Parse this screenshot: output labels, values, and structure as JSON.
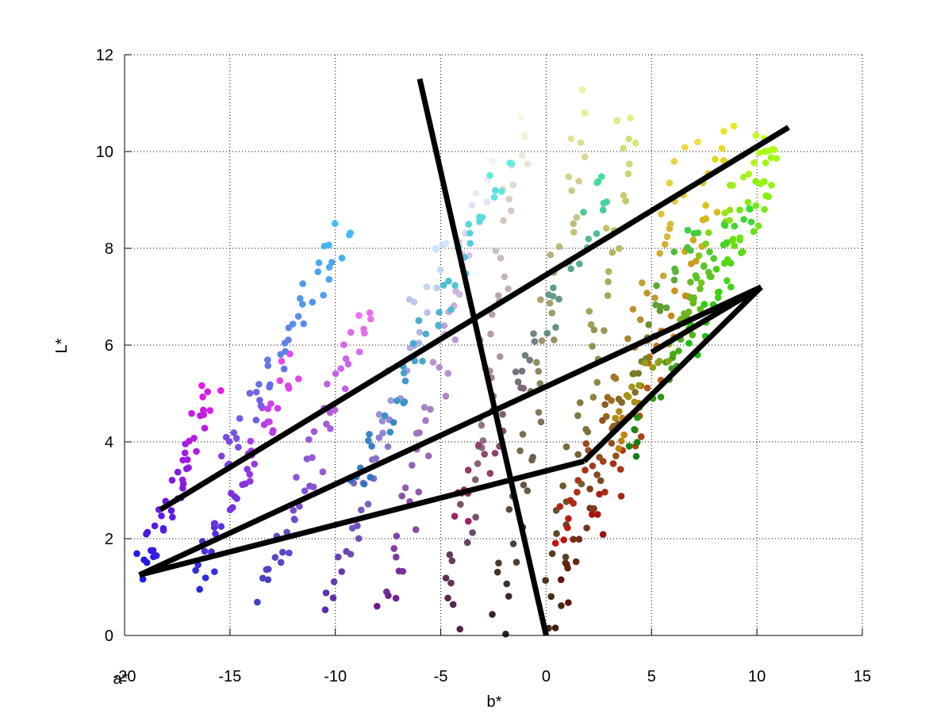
{
  "chart_data": {
    "type": "scatter",
    "xlabel": "b*",
    "ylabel": "L*",
    "corner_label": "a*",
    "xlim": [
      -20,
      15
    ],
    "ylim": [
      0,
      12
    ],
    "xticks": [
      -20,
      -15,
      -10,
      -5,
      0,
      5,
      10,
      15
    ],
    "yticks": [
      0,
      2,
      4,
      6,
      8,
      10,
      12
    ],
    "xtick_labels": [
      "-20",
      "-15",
      "-10",
      "-5",
      "0",
      "5",
      "10",
      "15"
    ],
    "ytick_labels": [
      "0",
      "2",
      "4",
      "6",
      "8",
      "10",
      "12"
    ],
    "grid": true,
    "grid_style": "dotted",
    "line_color": "#000000",
    "lines": [
      {
        "x": [
          -6.0,
          0.0
        ],
        "y": [
          11.5,
          0.0
        ]
      },
      {
        "x": [
          -18.3,
          11.5
        ],
        "y": [
          2.6,
          10.5
        ]
      },
      {
        "x": [
          -19.3,
          10.2
        ],
        "y": [
          1.25,
          7.2
        ]
      },
      {
        "x": [
          -19.3,
          1.8
        ],
        "y": [
          1.25,
          3.6
        ]
      },
      {
        "x": [
          1.8,
          10.2
        ],
        "y": [
          3.6,
          7.2
        ]
      },
      {
        "x": [
          5.0,
          10.2
        ],
        "y": [
          5.85,
          7.2
        ]
      }
    ],
    "point_clusters": [
      {
        "x": [
          -19.3,
          -15.8
        ],
        "y": [
          1.25,
          5.1
        ],
        "color_start": "#1a1ae6",
        "color_end": "#e61ae6"
      },
      {
        "x": [
          -16.6,
          -12.0
        ],
        "y": [
          1.0,
          5.6
        ],
        "color_start": "#2a2ad8",
        "color_end": "#ee44ee"
      },
      {
        "x": [
          -13.4,
          -8.5
        ],
        "y": [
          0.8,
          6.8
        ],
        "color_start": "#4040c0",
        "color_end": "#f070f0"
      },
      {
        "x": [
          -10.2,
          -5.0
        ],
        "y": [
          0.6,
          8.3
        ],
        "color_start": "#5a2aa8",
        "color_end": "#d0e8ff"
      },
      {
        "x": [
          -7.5,
          -3.0
        ],
        "y": [
          0.45,
          9.6
        ],
        "color_start": "#6a1a90",
        "color_end": "#f0f0ff"
      },
      {
        "x": [
          -4.6,
          -1.0
        ],
        "y": [
          0.3,
          10.8
        ],
        "color_start": "#50204a",
        "color_end": "#f8f8e0"
      },
      {
        "x": [
          -2.3,
          1.8
        ],
        "y": [
          0.15,
          11.1
        ],
        "color_start": "#302020",
        "color_end": "#f0f0a0"
      },
      {
        "x": [
          0.0,
          4.0
        ],
        "y": [
          0.05,
          10.9
        ],
        "color_start": "#402010",
        "color_end": "#e0f080"
      },
      {
        "x": [
          1.0,
          6.8
        ],
        "y": [
          0.8,
          10.2
        ],
        "color_start": "#601010",
        "color_end": "#f0e040"
      },
      {
        "x": [
          2.5,
          9.0
        ],
        "y": [
          2.2,
          10.6
        ],
        "color_start": "#a01010",
        "color_end": "#e8e820"
      },
      {
        "x": [
          4.0,
          10.2
        ],
        "y": [
          3.8,
          10.3
        ],
        "color_start": "#108010",
        "color_end": "#c0ff20"
      },
      {
        "x": [
          7.0,
          11.3
        ],
        "y": [
          6.0,
          10.2
        ],
        "color_start": "#10c010",
        "color_end": "#b0ff10"
      },
      {
        "x": [
          -15.5,
          -9.5
        ],
        "y": [
          3.5,
          8.5
        ],
        "color_start": "#8040e0",
        "color_end": "#40c0f0"
      },
      {
        "x": [
          -9.0,
          -2.0
        ],
        "y": [
          3.0,
          9.8
        ],
        "color_start": "#3070c0",
        "color_end": "#60f0e0"
      },
      {
        "x": [
          -4.0,
          3.0
        ],
        "y": [
          2.5,
          9.5
        ],
        "color_start": "#a02060",
        "color_end": "#40e0a0"
      },
      {
        "x": [
          0.5,
          7.0
        ],
        "y": [
          2.0,
          8.5
        ],
        "color_start": "#c01010",
        "color_end": "#40d040"
      },
      {
        "x": [
          3.0,
          9.5
        ],
        "y": [
          4.0,
          9.0
        ],
        "color_start": "#c08010",
        "color_end": "#30e030"
      }
    ]
  }
}
